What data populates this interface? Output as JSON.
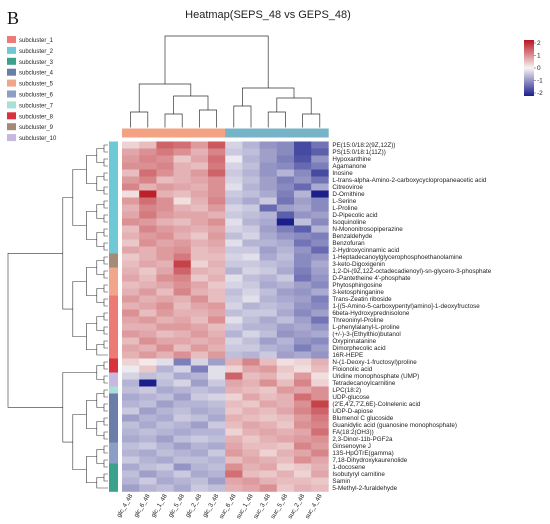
{
  "panel_label": "B",
  "chart_data": {
    "type": "heatmap",
    "title": "Heatmap(SEPS_48 vs GEPS_48)",
    "columns": [
      "glc_4_48",
      "glc_6_48",
      "glc_1_48",
      "glc_5_48",
      "glc_2_48",
      "glc_3_48",
      "suc_6_48",
      "suc_1_48",
      "suc_3_48",
      "suc_5_48",
      "suc_2_48",
      "suc_4_48"
    ],
    "rows": [
      "PE(15:0/18:2(9Z,12Z))",
      "PS(15:0/18:1(11Z))",
      "Hypoxanthine",
      "Agamanone",
      "Inosine",
      "L-trans-alpha-Amino-2-carboxycyclopropaneacetic acid",
      "Citreoviroe",
      "D-Ornithine",
      "L-Serine",
      "L-Proline",
      "D-Pipecolic acid",
      "Isoquinoline",
      "N-Mononitrosopiperazine",
      "Benzaldehyde",
      "Benzofuran",
      "2-Hydroxycinnamic acid",
      "1-Heptadecanoylglycerophosphoethanolamine",
      "3-keto-Digoxigenin",
      "1,2-Di-(9Z,12Z-octadecadienoyl)-sn-glycero-3-phosphate",
      "D-Pantetheine 4'-phosphate",
      "Phytosphingosine",
      "3-ketosphinganine",
      "Trans-Zeatin riboside",
      "1-[(5-Amino-5-carboxypentyl)amino]-1-deoxyfructose",
      "6beta-Hydroxyprednisolone",
      "Threoninyl-Proline",
      "L-phenylalanyl-L-proline",
      "(+/-)-3-(Ethylthio)butanol",
      "Oxypinnatanine",
      "Dimorphecolic acid",
      "16R-HEPE",
      "N-(1-Deoxy-1-fructosyl)proline",
      "Floionolic acid",
      "Uridine monophosphate (UMP)",
      "Tetradecanoylcarnitine",
      "LPC(18:2)",
      "UDP-glucose",
      "(2'E,4'Z,7'Z,6E)-Colnelenic acid",
      "UDP-D-apiose",
      "Blumenol C glucoside",
      "Guanidylic acid (guanosine monophosphate)",
      "FA(18:2(OH3))",
      "2,3-Dinor-11b-PGF2a",
      "Ginsenoyne J",
      "13S-HpOTrE(gamma)",
      "7,18-Dihydroxykaurenolide",
      "1-docosene",
      "Isobutyryl carnitine",
      "Samin",
      "5-Methyl-2-furaldehyde"
    ],
    "row_subclusters": [
      2,
      2,
      2,
      2,
      2,
      2,
      2,
      2,
      2,
      2,
      2,
      2,
      2,
      2,
      2,
      2,
      9,
      9,
      5,
      5,
      5,
      5,
      1,
      1,
      1,
      1,
      1,
      1,
      1,
      1,
      1,
      8,
      8,
      10,
      10,
      7,
      4,
      4,
      4,
      4,
      4,
      4,
      4,
      6,
      6,
      6,
      3,
      3,
      3,
      3
    ],
    "column_groups": [
      "glc",
      "glc",
      "glc",
      "glc",
      "glc",
      "glc",
      "suc",
      "suc",
      "suc",
      "suc",
      "suc",
      "suc"
    ],
    "values": [
      [
        0.3,
        0.5,
        1.3,
        1.2,
        0.8,
        1.4,
        -0.3,
        -0.6,
        -0.9,
        -1.0,
        -1.6,
        -1.2
      ],
      [
        0.7,
        0.9,
        1.1,
        0.9,
        0.6,
        1.0,
        -0.4,
        -0.5,
        -0.8,
        -1.0,
        -1.6,
        -1.4
      ],
      [
        0.8,
        1.0,
        0.9,
        0.4,
        0.7,
        1.2,
        -0.1,
        -0.6,
        -0.8,
        -1.1,
        -1.5,
        -0.9
      ],
      [
        0.9,
        0.9,
        1.0,
        0.6,
        0.5,
        1.1,
        -0.3,
        -0.5,
        -0.9,
        -1.0,
        -1.3,
        -1.1
      ],
      [
        0.5,
        1.2,
        0.9,
        0.6,
        0.8,
        1.3,
        -0.4,
        -0.6,
        -0.9,
        -0.6,
        -1.0,
        -1.6
      ],
      [
        0.8,
        1.0,
        0.5,
        0.6,
        0.7,
        0.9,
        -0.3,
        -0.5,
        -0.8,
        -1.1,
        -0.9,
        -1.2
      ],
      [
        1.0,
        0.6,
        0.8,
        0.7,
        0.6,
        0.9,
        -0.2,
        -0.6,
        -0.8,
        -1.0,
        -1.3,
        -0.7
      ],
      [
        0.2,
        1.9,
        0.6,
        0.5,
        0.7,
        0.9,
        -0.4,
        -0.5,
        -0.7,
        -1.1,
        -0.6,
        -2.0
      ],
      [
        0.8,
        1.2,
        0.9,
        0.2,
        0.6,
        1.0,
        -0.5,
        -0.7,
        -0.4,
        -1.2,
        -0.8,
        -1.0
      ],
      [
        0.6,
        1.0,
        0.9,
        0.6,
        0.5,
        0.8,
        -0.3,
        -0.4,
        -1.3,
        -0.8,
        -0.7,
        -1.0
      ],
      [
        0.7,
        1.1,
        0.8,
        0.7,
        0.7,
        0.6,
        -0.4,
        -0.5,
        -0.6,
        -1.4,
        -0.9,
        -0.8
      ],
      [
        0.9,
        0.8,
        0.6,
        0.5,
        0.7,
        0.9,
        -0.2,
        -0.6,
        -0.7,
        -2.0,
        -0.5,
        -1.0
      ],
      [
        0.5,
        1.0,
        0.8,
        0.7,
        0.6,
        0.7,
        -0.3,
        -0.4,
        -0.8,
        -1.1,
        -1.4,
        -0.6
      ],
      [
        0.6,
        0.8,
        0.9,
        0.6,
        0.4,
        0.8,
        -0.5,
        -0.3,
        -0.7,
        -0.9,
        -1.0,
        -1.1
      ],
      [
        0.4,
        0.9,
        0.7,
        0.8,
        0.6,
        0.7,
        -0.2,
        -0.6,
        -0.6,
        -0.7,
        -1.2,
        -1.0
      ],
      [
        0.7,
        0.6,
        0.8,
        0.9,
        0.5,
        0.6,
        -0.4,
        -0.4,
        -0.8,
        -0.6,
        -0.9,
        -1.3
      ],
      [
        0.4,
        0.6,
        0.8,
        1.1,
        0.5,
        0.5,
        -0.3,
        -0.2,
        -0.7,
        -0.5,
        -1.0,
        -0.9
      ],
      [
        0.5,
        0.7,
        0.6,
        1.6,
        0.3,
        0.6,
        -0.4,
        -0.4,
        -0.5,
        -0.6,
        -1.0,
        -0.7
      ],
      [
        0.6,
        0.4,
        0.7,
        1.3,
        0.6,
        0.5,
        -0.6,
        -0.3,
        -0.4,
        -0.7,
        -1.1,
        -0.8
      ],
      [
        0.7,
        0.5,
        0.9,
        1.0,
        0.4,
        0.6,
        -0.2,
        -0.5,
        -0.6,
        -0.4,
        -1.2,
        -0.9
      ],
      [
        0.5,
        0.6,
        0.7,
        0.9,
        0.7,
        0.4,
        -0.3,
        -0.4,
        -0.7,
        -0.6,
        -0.8,
        -1.0
      ],
      [
        0.6,
        0.8,
        0.5,
        1.0,
        0.6,
        0.5,
        -0.5,
        -0.3,
        -0.5,
        -0.8,
        -0.9,
        -0.7
      ],
      [
        0.8,
        0.6,
        0.7,
        0.6,
        0.9,
        0.5,
        -0.4,
        -0.2,
        -0.6,
        -0.7,
        -0.8,
        -1.1
      ],
      [
        0.6,
        0.7,
        0.9,
        0.5,
        0.7,
        0.8,
        -0.3,
        -0.6,
        -0.5,
        -0.6,
        -0.9,
        -1.0
      ],
      [
        0.9,
        0.5,
        0.8,
        0.6,
        0.6,
        0.7,
        -0.5,
        -0.4,
        -0.4,
        -0.7,
        -1.0,
        -0.8
      ],
      [
        0.7,
        0.8,
        0.6,
        0.7,
        0.5,
        0.9,
        -0.2,
        -0.5,
        -0.7,
        -0.5,
        -0.8,
        -1.2
      ],
      [
        0.6,
        0.6,
        0.8,
        0.8,
        0.7,
        0.5,
        -0.4,
        -0.6,
        -0.6,
        -0.8,
        -0.7,
        -0.9
      ],
      [
        0.8,
        0.7,
        0.5,
        0.6,
        0.8,
        0.6,
        -0.6,
        -0.3,
        -0.5,
        -0.9,
        -0.8,
        -0.7
      ],
      [
        0.5,
        0.9,
        0.7,
        0.7,
        0.6,
        0.7,
        -0.3,
        -0.5,
        -0.8,
        -0.6,
        -0.9,
        -1.0
      ],
      [
        0.7,
        0.6,
        0.9,
        0.5,
        0.8,
        0.6,
        -0.4,
        -0.4,
        -0.6,
        -0.7,
        -1.1,
        -0.8
      ],
      [
        0.6,
        0.8,
        0.6,
        0.9,
        0.5,
        0.8,
        -0.5,
        -0.6,
        -0.4,
        -0.8,
        -0.7,
        -0.9
      ],
      [
        0.3,
        0.1,
        -0.2,
        -1.1,
        -0.3,
        -0.8,
        0.6,
        1.0,
        0.5,
        0.2,
        0.3,
        0.6
      ],
      [
        -0.1,
        0.4,
        -0.6,
        -0.3,
        -1.1,
        -0.2,
        0.3,
        0.7,
        0.8,
        0.4,
        0.2,
        0.5
      ],
      [
        -0.3,
        -0.5,
        -0.4,
        -0.7,
        -0.6,
        -0.2,
        1.3,
        0.5,
        0.6,
        0.3,
        0.8,
        0.2
      ],
      [
        -0.6,
        -2.0,
        -0.5,
        -0.3,
        -0.8,
        -0.4,
        0.7,
        0.6,
        0.9,
        0.5,
        1.0,
        0.3
      ],
      [
        -0.5,
        -0.4,
        -0.7,
        -0.6,
        -0.5,
        -0.6,
        0.6,
        0.5,
        0.4,
        0.8,
        0.7,
        0.9
      ],
      [
        -0.7,
        -0.6,
        -0.5,
        -0.8,
        -0.4,
        -0.3,
        0.3,
        0.7,
        0.5,
        0.6,
        1.2,
        0.9
      ],
      [
        -0.6,
        -0.5,
        -0.8,
        -0.6,
        -0.6,
        -0.5,
        0.5,
        0.4,
        0.7,
        0.6,
        0.9,
        1.6
      ],
      [
        -0.4,
        -0.8,
        -0.6,
        -0.5,
        -0.7,
        -0.6,
        0.4,
        0.6,
        0.5,
        0.7,
        1.0,
        1.3
      ],
      [
        -0.8,
        -0.6,
        -0.7,
        -0.4,
        -0.5,
        -0.7,
        0.6,
        0.5,
        0.4,
        0.5,
        0.8,
        1.1
      ],
      [
        -0.5,
        -0.7,
        -0.5,
        -0.6,
        -0.8,
        -0.4,
        0.5,
        0.7,
        0.6,
        0.4,
        0.9,
        1.0
      ],
      [
        -0.6,
        -0.5,
        -0.6,
        -0.7,
        -0.6,
        -0.6,
        0.3,
        0.6,
        0.7,
        0.6,
        0.7,
        1.2
      ],
      [
        -0.7,
        -0.6,
        -0.8,
        -0.5,
        -0.4,
        -0.5,
        0.6,
        0.4,
        0.6,
        0.7,
        0.8,
        0.9
      ],
      [
        -0.5,
        -0.4,
        -0.6,
        -0.8,
        -0.6,
        -0.7,
        0.7,
        0.5,
        0.5,
        0.4,
        1.0,
        0.8
      ],
      [
        -0.6,
        -0.7,
        -0.5,
        -0.6,
        -0.7,
        -0.4,
        0.8,
        0.6,
        0.3,
        0.6,
        0.7,
        1.0
      ],
      [
        -0.4,
        -0.6,
        -0.7,
        -0.5,
        -0.5,
        -0.6,
        0.5,
        0.7,
        0.6,
        0.5,
        0.9,
        0.7
      ],
      [
        -0.7,
        -0.5,
        -0.4,
        -0.9,
        -0.6,
        -0.5,
        0.9,
        0.6,
        0.7,
        0.3,
        0.4,
        0.6
      ],
      [
        -0.5,
        -0.8,
        -0.6,
        -0.4,
        -0.7,
        -0.6,
        1.2,
        0.5,
        0.4,
        0.6,
        0.3,
        0.7
      ],
      [
        -0.6,
        -0.4,
        -0.7,
        -0.6,
        -0.5,
        -0.8,
        0.7,
        0.8,
        0.6,
        0.5,
        0.5,
        0.4
      ],
      [
        -0.8,
        -0.6,
        -0.5,
        -0.7,
        -0.4,
        -0.5,
        0.6,
        0.7,
        0.9,
        0.4,
        0.6,
        0.5
      ]
    ],
    "colorscale": {
      "min": -2,
      "max": 2,
      "low": "#1a1f8c",
      "mid": "#f7f4f4",
      "high": "#b8161e"
    },
    "colorbar_ticks": [
      "2",
      "1",
      "0",
      "-1",
      "-2"
    ],
    "legend": {
      "placement": "top-left",
      "entries": [
        {
          "label": "subcluster_1",
          "color": "#ee7a76"
        },
        {
          "label": "subcluster_2",
          "color": "#6fc8d6"
        },
        {
          "label": "subcluster_3",
          "color": "#3aa18c"
        },
        {
          "label": "subcluster_4",
          "color": "#6a7ea9"
        },
        {
          "label": "subcluster_5",
          "color": "#f1a58a"
        },
        {
          "label": "subcluster_6",
          "color": "#8a9ec6"
        },
        {
          "label": "subcluster_7",
          "color": "#a9dfd9"
        },
        {
          "label": "subcluster_8",
          "color": "#d9323c"
        },
        {
          "label": "subcluster_9",
          "color": "#a48b77"
        },
        {
          "label": "subcluster_10",
          "color": "#c6b8e0"
        }
      ]
    },
    "group_colors": {
      "glc": "#f3a383",
      "suc": "#76b3c6"
    }
  }
}
